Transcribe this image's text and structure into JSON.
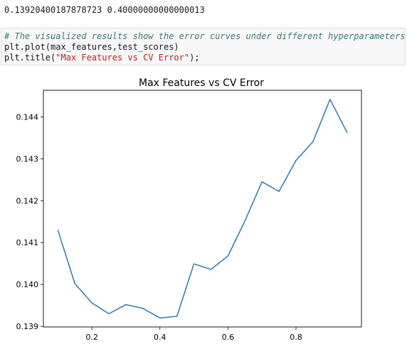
{
  "output": {
    "text": "0.13920400187878723 0.40000000000000013"
  },
  "code_cell": {
    "comment": "# The visualized results show the error curves under different hyperparameters",
    "line2": "plt.plot(max_features,test_scores)",
    "line3_prefix": "plt.title(",
    "line3_string": "\"Max Features vs CV Error\"",
    "line3_suffix": ");"
  },
  "colors": {
    "line": "#3b7fb3",
    "comment": "#3d7a7a",
    "string": "#ba2121",
    "cell_background": "#f7f7f7"
  },
  "chart_data": {
    "type": "line",
    "title": "Max Features vs CV Error",
    "xlabel": "",
    "ylabel": "",
    "x": [
      0.1,
      0.15,
      0.2,
      0.25,
      0.3,
      0.35,
      0.4,
      0.45,
      0.5,
      0.55,
      0.6,
      0.65,
      0.7,
      0.75,
      0.8,
      0.85,
      0.9,
      0.95
    ],
    "y": [
      0.1413,
      0.14002,
      0.13956,
      0.1393,
      0.13952,
      0.13943,
      0.1392,
      0.13924,
      0.14049,
      0.14036,
      0.14068,
      0.14152,
      0.14245,
      0.14222,
      0.14296,
      0.14341,
      0.14442,
      0.14363
    ],
    "x_ticks": [
      0.2,
      0.4,
      0.6,
      0.8
    ],
    "x_tick_labels": [
      "0.2",
      "0.4",
      "0.6",
      "0.8"
    ],
    "y_ticks": [
      0.139,
      0.14,
      0.141,
      0.142,
      0.143,
      0.144
    ],
    "y_tick_labels": [
      "0.139",
      "0.140",
      "0.141",
      "0.142",
      "0.143",
      "0.144"
    ],
    "xlim": [
      0.0575,
      0.9925
    ],
    "ylim": [
      0.138985,
      0.144635
    ],
    "grid": false,
    "legend": "none"
  }
}
